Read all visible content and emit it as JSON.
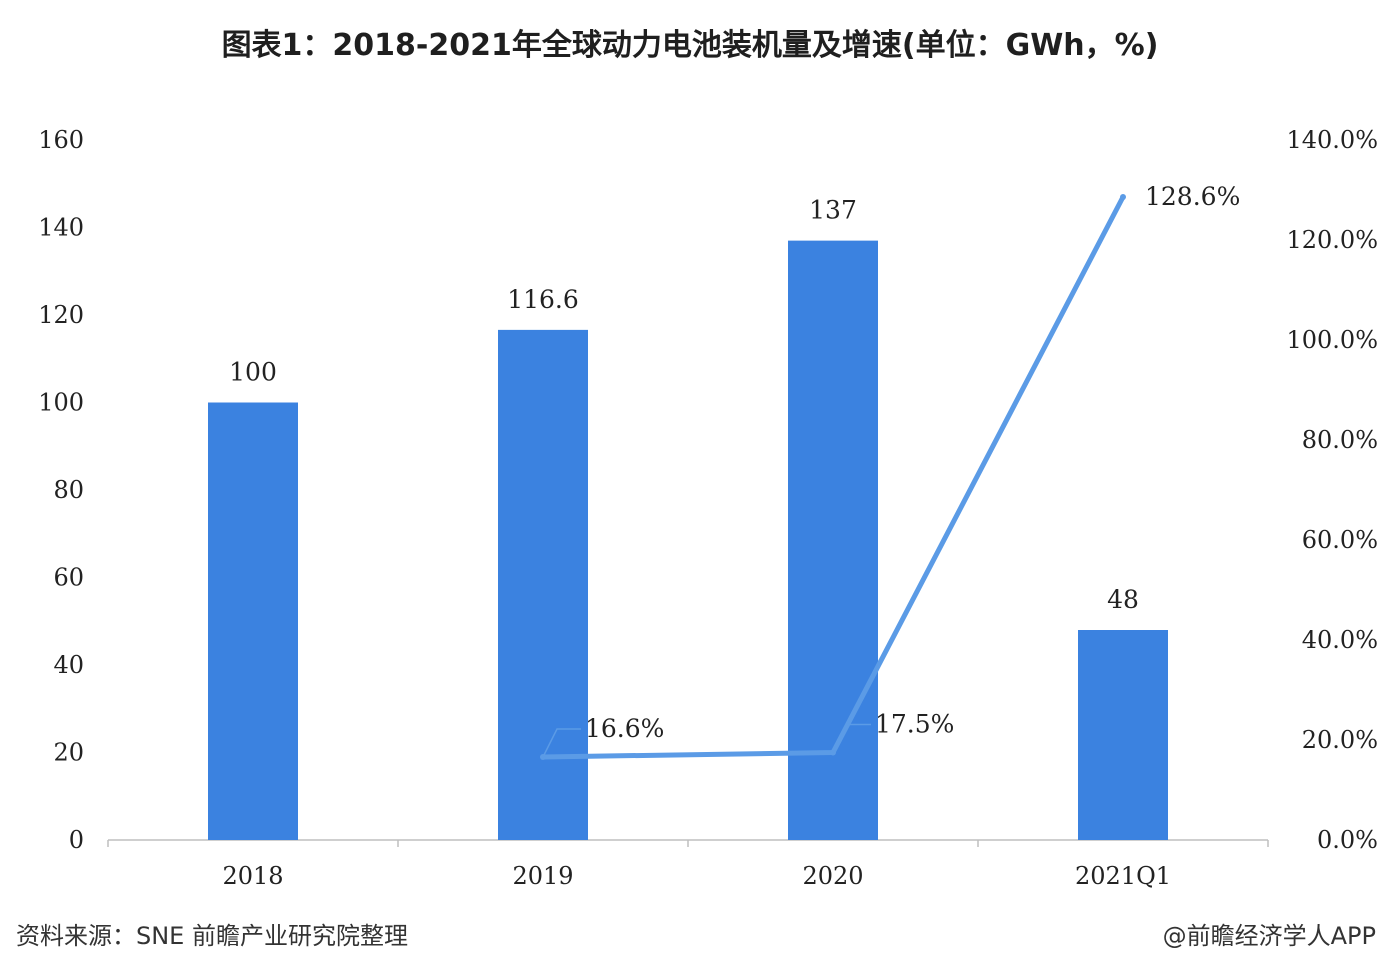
{
  "title": "图表1：2018-2021年全球动力电池装机量及增速(单位：GWh，%)",
  "source": "资料来源：SNE 前瞻产业研究院整理",
  "credit": "@前瞻经济学人APP",
  "chart_data": {
    "type": "bar",
    "categories": [
      "2018",
      "2019",
      "2020",
      "2021Q1"
    ],
    "series": [
      {
        "type": "bar",
        "axis": "left",
        "values": [
          100,
          116.6,
          137,
          48
        ],
        "labels": [
          "100",
          "116.6",
          "137",
          "48"
        ],
        "color": "#3b82e0"
      },
      {
        "type": "line",
        "axis": "right",
        "values": [
          null,
          16.6,
          17.5,
          128.6
        ],
        "labels": [
          "",
          "16.6%",
          "17.5%",
          "128.6%"
        ],
        "color": "#5b9be6"
      }
    ],
    "y_left": {
      "lim": [
        0,
        160
      ],
      "ticks": [
        "0",
        "20",
        "40",
        "60",
        "80",
        "100",
        "120",
        "140",
        "160"
      ]
    },
    "y_right": {
      "lim": [
        0,
        140
      ],
      "ticks": [
        "0.0%",
        "20.0%",
        "40.0%",
        "60.0%",
        "80.0%",
        "100.0%",
        "120.0%",
        "140.0%"
      ]
    },
    "grid": false,
    "legend": "none"
  }
}
